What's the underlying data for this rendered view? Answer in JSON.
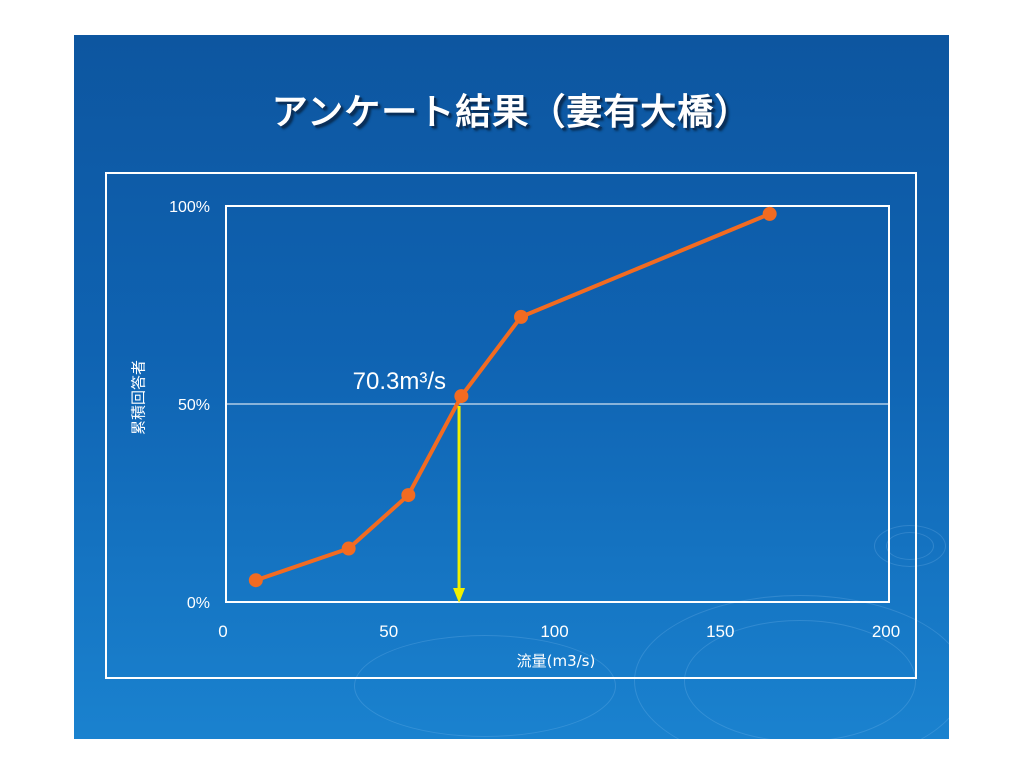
{
  "slide": {
    "title": "アンケート結果（妻有大橋）"
  },
  "chart_data": {
    "type": "line",
    "xlabel": "流量(m3/s)",
    "ylabel": "累積回答者",
    "xlim": [
      0,
      200
    ],
    "ylim": [
      0,
      100
    ],
    "x_ticks": [
      "0",
      "50",
      "100",
      "150",
      "200"
    ],
    "y_ticks": [
      "0%",
      "50%",
      "100%"
    ],
    "grid": "horizontal at 50%",
    "series": [
      {
        "x": [
          9,
          37,
          55,
          71,
          89,
          164
        ],
        "y": [
          5.5,
          13.5,
          27,
          52,
          72,
          98
        ],
        "color": "#f26b21"
      }
    ],
    "annotation": {
      "text": "70.3m³/s",
      "x": 70.3,
      "y": 50,
      "arrow_color": "#f0f000"
    }
  }
}
